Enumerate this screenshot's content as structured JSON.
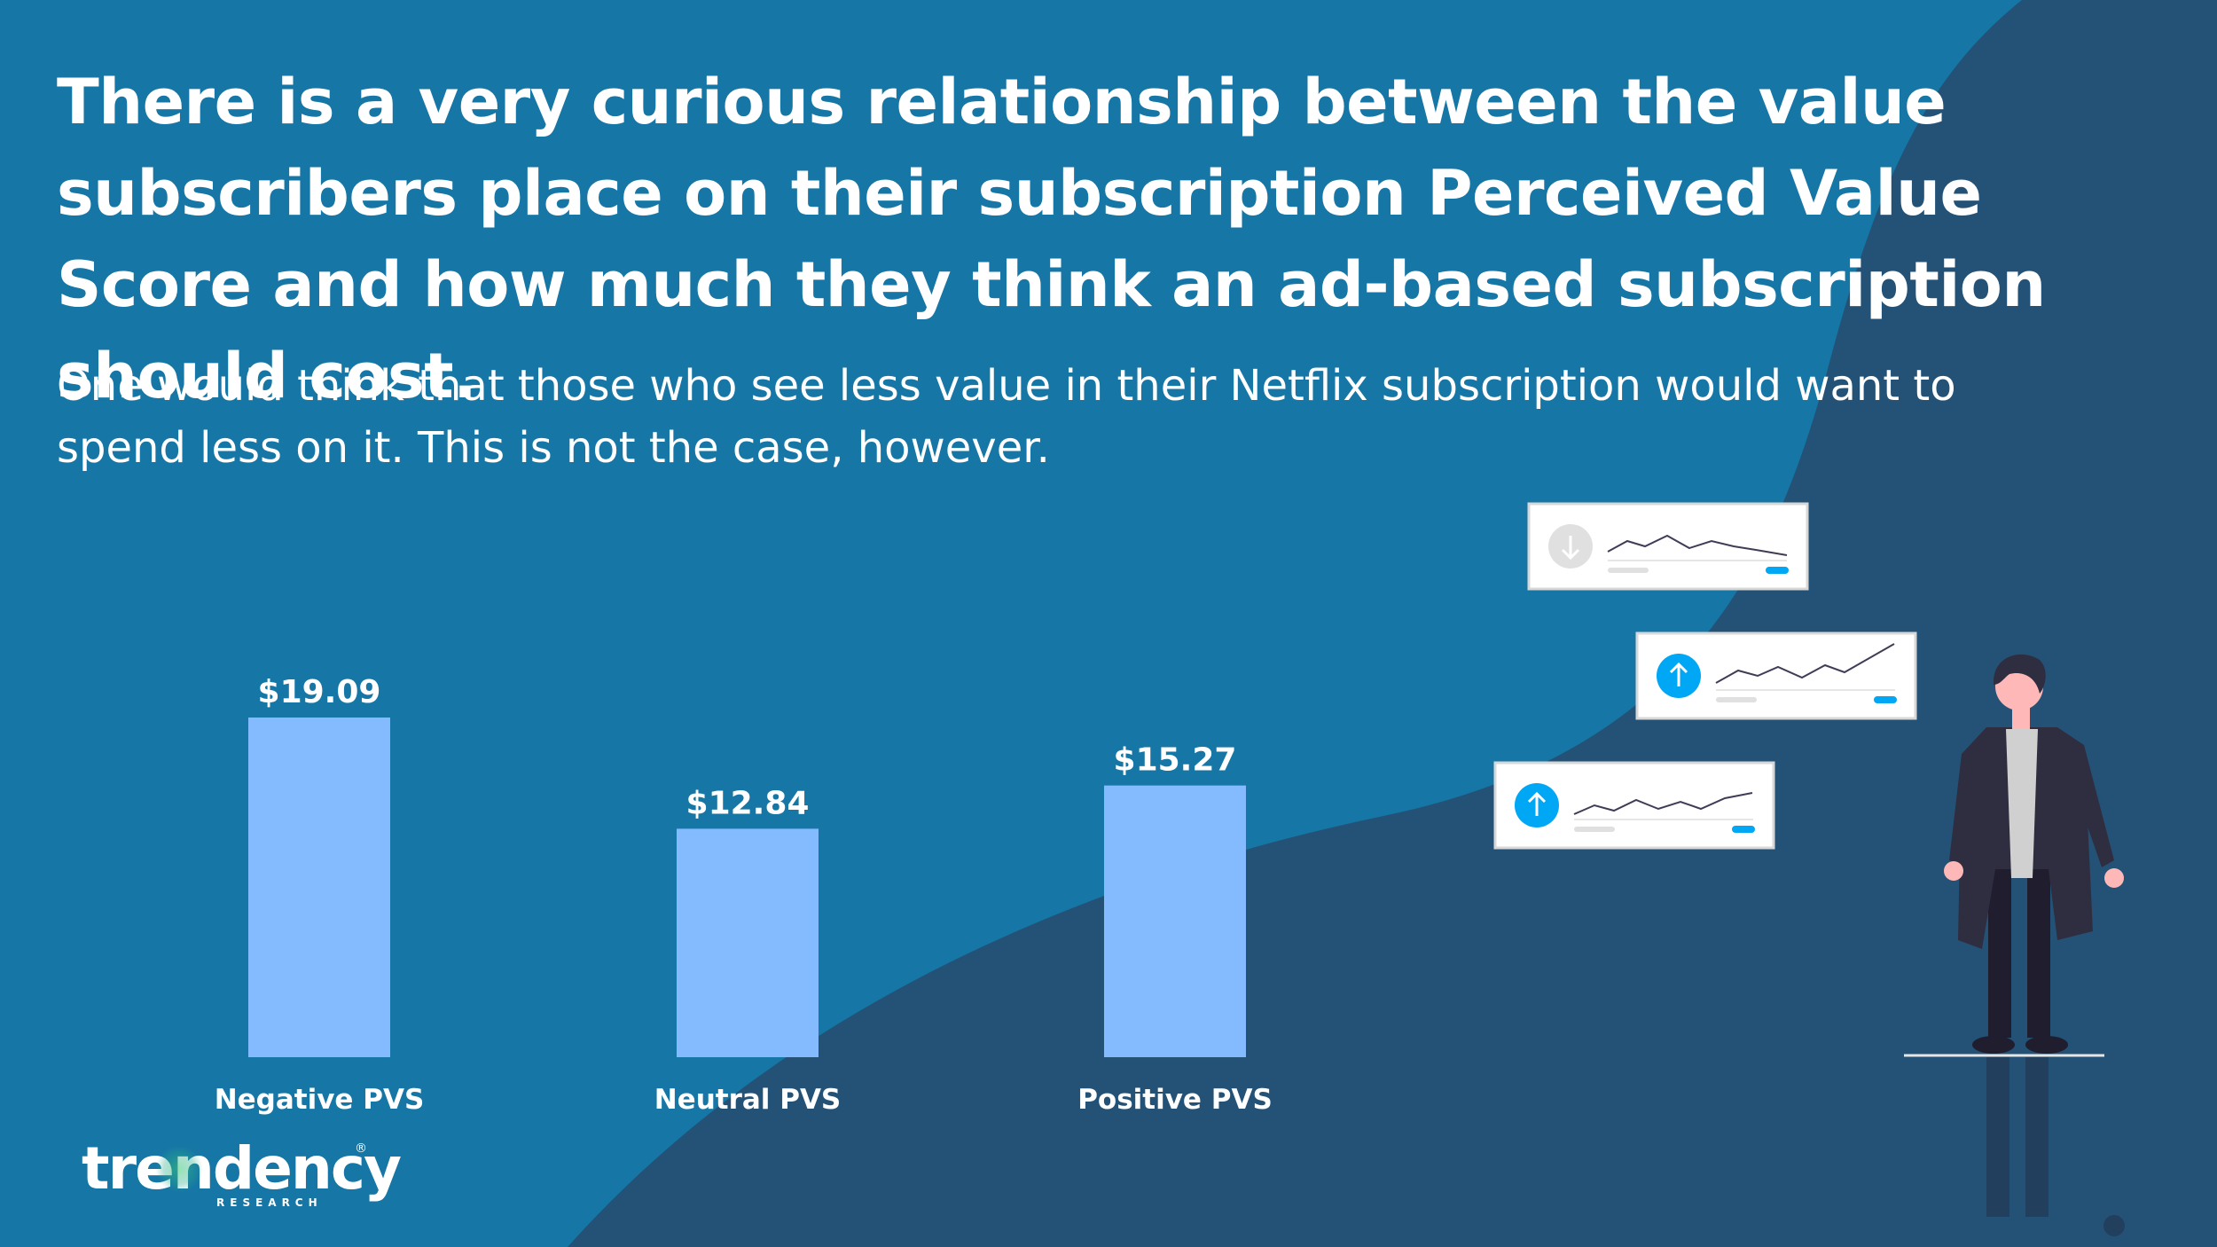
{
  "headline": "There is a very curious relationship between the value subscribers place on their subscription Perceived Value Score and how much they think an ad-based subscription should cost.",
  "subtitle": "One would think that those who see less value in their Netflix subscription would want to spend less on it. This is not the case, however.",
  "colors": {
    "background_light": "#1676a5",
    "background_dark": "#245277",
    "bar": "#84bbff",
    "text": "#ffffff",
    "accent_blue": "#00a7f4"
  },
  "chart_data": {
    "type": "bar",
    "categories": [
      "Negative PVS",
      "Neutral PVS",
      "Positive PVS"
    ],
    "values": [
      19.09,
      12.84,
      15.27
    ],
    "value_labels": [
      "$19.09",
      "$12.84",
      "$15.27"
    ],
    "ylim": [
      0,
      19.09
    ],
    "grid": false,
    "legend": "none"
  },
  "logo": {
    "word": "trendency",
    "sub": "RESEARCH",
    "reg": "®"
  },
  "illustration": {
    "cards": [
      {
        "icon": "arrow-down-icon",
        "trend": "down"
      },
      {
        "icon": "arrow-up-icon",
        "trend": "up"
      },
      {
        "icon": "arrow-up-icon",
        "trend": "up"
      }
    ]
  }
}
